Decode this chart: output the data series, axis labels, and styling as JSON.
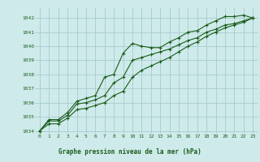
{
  "title": "Graphe pression niveau de la mer (hPa)",
  "background_color": "#ceeaea",
  "grid_color": "#a8cccc",
  "line_color": "#1a5c1a",
  "xlim": [
    -0.5,
    23.5
  ],
  "ylim": [
    1033.8,
    1042.7
  ],
  "yticks": [
    1034,
    1035,
    1036,
    1037,
    1038,
    1039,
    1040,
    1041,
    1042
  ],
  "xticks": [
    0,
    1,
    2,
    3,
    4,
    5,
    6,
    7,
    8,
    9,
    10,
    11,
    12,
    13,
    14,
    15,
    16,
    17,
    18,
    19,
    20,
    21,
    22,
    23
  ],
  "line1": {
    "x": [
      0,
      1,
      2,
      3,
      4,
      5,
      6,
      7,
      8,
      9,
      10,
      11,
      12,
      13,
      14,
      15,
      16,
      17,
      18,
      19,
      20,
      21,
      22,
      23
    ],
    "y": [
      1034.0,
      1034.8,
      1034.8,
      1035.3,
      1036.1,
      1036.3,
      1036.5,
      1037.8,
      1038.0,
      1039.5,
      1040.2,
      1040.0,
      1039.9,
      1039.9,
      1040.3,
      1040.6,
      1041.0,
      1041.1,
      1041.5,
      1041.8,
      1042.1,
      1042.1,
      1042.2,
      1042.0
    ]
  },
  "line2": {
    "x": [
      0,
      1,
      2,
      3,
      4,
      5,
      6,
      7,
      8,
      9,
      10,
      11,
      12,
      13,
      14,
      15,
      16,
      17,
      18,
      19,
      20,
      21,
      22,
      23
    ],
    "y": [
      1034.0,
      1034.7,
      1034.7,
      1035.1,
      1035.9,
      1036.0,
      1036.2,
      1036.5,
      1037.4,
      1037.8,
      1039.0,
      1039.2,
      1039.4,
      1039.6,
      1039.8,
      1040.1,
      1040.4,
      1040.6,
      1041.0,
      1041.2,
      1041.5,
      1041.6,
      1041.8,
      1042.0
    ]
  },
  "line3": {
    "x": [
      0,
      1,
      2,
      3,
      4,
      5,
      6,
      7,
      8,
      9,
      10,
      11,
      12,
      13,
      14,
      15,
      16,
      17,
      18,
      19,
      20,
      21,
      22,
      23
    ],
    "y": [
      1034.0,
      1034.5,
      1034.5,
      1034.9,
      1035.5,
      1035.6,
      1035.8,
      1036.0,
      1036.5,
      1036.8,
      1037.8,
      1038.3,
      1038.6,
      1038.9,
      1039.2,
      1039.6,
      1040.0,
      1040.3,
      1040.7,
      1041.0,
      1041.3,
      1041.5,
      1041.7,
      1042.0
    ]
  }
}
